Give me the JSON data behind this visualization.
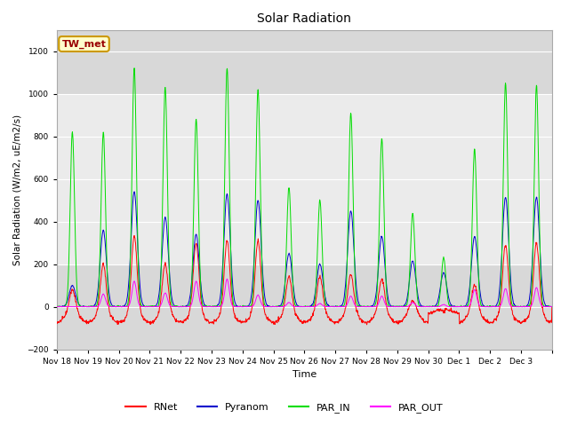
{
  "title": "Solar Radiation",
  "ylabel": "Solar Radiation (W/m2, uE/m2/s)",
  "xlabel": "Time",
  "ylim": [
    -200,
    1300
  ],
  "yticks": [
    -200,
    0,
    200,
    400,
    600,
    800,
    1000,
    1200
  ],
  "background_color": "#ffffff",
  "plot_bg_color": "#d8d8d8",
  "shaded_band": [
    200,
    1000
  ],
  "shaded_band_color": "#ebebeb",
  "site_label": "TW_met",
  "site_label_bg": "#ffffcc",
  "site_label_border": "#cc9900",
  "site_label_color": "#990000",
  "legend_entries": [
    "RNet",
    "Pyranom",
    "PAR_IN",
    "PAR_OUT"
  ],
  "line_colors": [
    "#ff0000",
    "#0000cc",
    "#00dd00",
    "#ff00ff"
  ],
  "n_days": 16,
  "date_labels": [
    "Nov 18",
    "Nov 19",
    "Nov 20",
    "Nov 21",
    "Nov 22",
    "Nov 23",
    "Nov 24",
    "Nov 25",
    "Nov 26",
    "Nov 27",
    "Nov 28",
    "Nov 29",
    "Nov 30",
    "Dec 1",
    "Dec 2",
    "Dec 3"
  ],
  "seed": 42
}
